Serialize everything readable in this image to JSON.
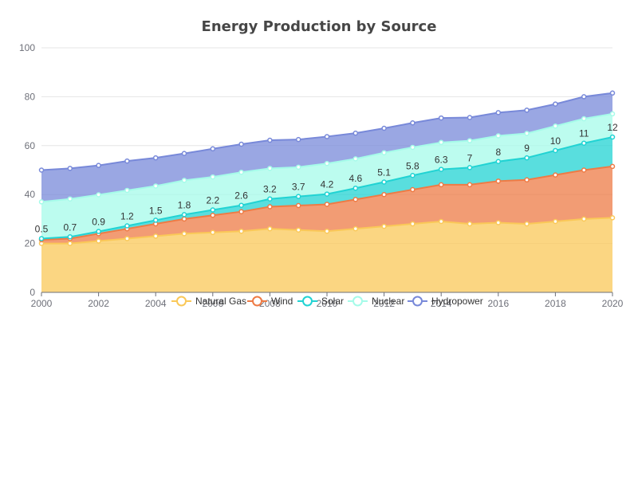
{
  "chart_data": {
    "type": "area",
    "stacked": true,
    "title": "Energy Production by Source",
    "x": [
      "2000",
      "2001",
      "2002",
      "2003",
      "2004",
      "2005",
      "2006",
      "2007",
      "2008",
      "2009",
      "2010",
      "2011",
      "2012",
      "2013",
      "2014",
      "2015",
      "2016",
      "2017",
      "2018",
      "2019",
      "2020"
    ],
    "x_tick_labels": [
      "2000",
      "2002",
      "2004",
      "2006",
      "2008",
      "2010",
      "2012",
      "2014",
      "2016",
      "2018",
      "2020"
    ],
    "y_ticks": [
      "0",
      "20",
      "40",
      "60",
      "80",
      "100"
    ],
    "ylim": [
      0,
      100
    ],
    "grid": true,
    "legend_position": "bottom-overlapping-axis",
    "series": [
      {
        "name": "Natural Gas",
        "color": "#fac858",
        "values": [
          20,
          20,
          21,
          22,
          23,
          24,
          24.5,
          25,
          26,
          25.5,
          25,
          26,
          27,
          28,
          29,
          28,
          28.5,
          28,
          29,
          30,
          30.5
        ]
      },
      {
        "name": "Wind",
        "color": "#ee7b45",
        "values": [
          1.5,
          2,
          3,
          4,
          5,
          6,
          7,
          8,
          9,
          10,
          11,
          12,
          13,
          14,
          15,
          16,
          17,
          18,
          19,
          20,
          21
        ]
      },
      {
        "name": "Solar",
        "color": "#21d3d3",
        "values": [
          0.5,
          0.7,
          0.9,
          1.2,
          1.5,
          1.8,
          2.2,
          2.6,
          3.2,
          3.7,
          4.2,
          4.6,
          5.1,
          5.8,
          6.3,
          7,
          8,
          9,
          10,
          11,
          12
        ],
        "labels": [
          "0.5",
          "0.7",
          "0.9",
          "1.2",
          "1.5",
          "1.8",
          "2.2",
          "2.6",
          "3.2",
          "3.7",
          "4.2",
          "4.6",
          "5.1",
          "5.8",
          "6.3",
          "7",
          "8",
          "9",
          "10",
          "11",
          "12"
        ]
      },
      {
        "name": "Nuclear",
        "color": "#a5fbe9",
        "values": [
          15,
          15.5,
          15,
          14.5,
          14,
          14,
          13.5,
          13.5,
          12.5,
          12,
          12.5,
          12,
          12,
          11.5,
          11,
          11,
          10.5,
          10,
          10,
          10,
          9.5
        ]
      },
      {
        "name": "Hydropower",
        "color": "#7889d9",
        "values": [
          13,
          12.5,
          12,
          12,
          11.5,
          11,
          11.5,
          11.5,
          11.5,
          11.3,
          11,
          10.5,
          10,
          10,
          10,
          9.5,
          9.5,
          9.5,
          9,
          9,
          8.5
        ]
      }
    ]
  }
}
